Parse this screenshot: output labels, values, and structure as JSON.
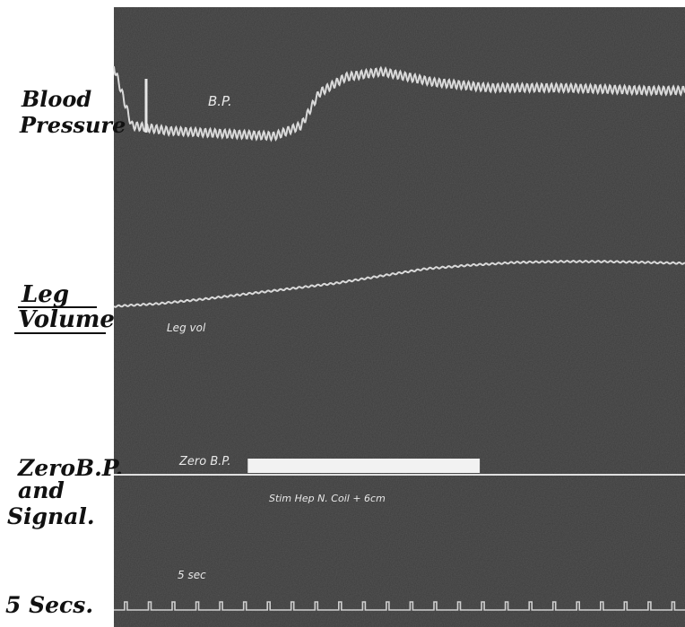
{
  "chart_data": {
    "type": "line",
    "title": "",
    "panel_labels": {
      "bp": [
        "Blood",
        "Pressure"
      ],
      "leg": [
        "Leg",
        "Volume"
      ],
      "zero": [
        "ZeroB.P.",
        "and",
        "Signal."
      ],
      "time": "5 Secs."
    },
    "trace_labels": {
      "bp": "B.P.",
      "leg": "Leg vol",
      "zero": "Zero B.P.",
      "stim": "Stim Hep N. Coil + 6cm",
      "time": "5 sec"
    },
    "time_marker_count": 24,
    "series": [
      {
        "name": "B.P.",
        "x": [
          0,
          20,
          60,
          120,
          180,
          210,
          230,
          260,
          300,
          360,
          420,
          500,
          600
        ],
        "values": [
          62,
          40,
          38,
          37,
          36,
          40,
          52,
          58,
          60,
          56,
          54,
          54,
          53
        ]
      },
      {
        "name": "Leg vol",
        "x": [
          0,
          50,
          100,
          150,
          200,
          250,
          300,
          350,
          400,
          450,
          500,
          550,
          600,
          640
        ],
        "values": [
          10,
          13,
          18,
          24,
          30,
          36,
          44,
          52,
          56,
          59,
          60,
          60,
          59,
          58
        ]
      },
      {
        "name": "Zero B.P.",
        "x": [
          0,
          640
        ],
        "values": [
          0,
          0
        ]
      }
    ],
    "signal_on": [
      150,
      410
    ]
  },
  "colors": {
    "panel": "#3c3c3c",
    "trace": "#d9d9d9",
    "signal": "#f2f2f2",
    "label": "#111111"
  }
}
